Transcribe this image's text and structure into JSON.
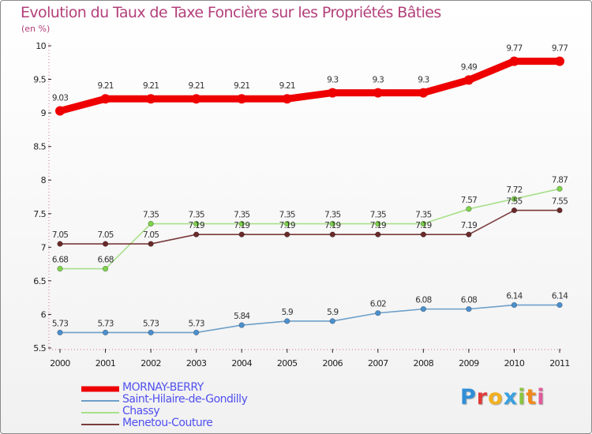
{
  "chart_data": {
    "type": "line",
    "title": "Evolution du Taux de Taxe Foncière sur les Propriétés Bâties",
    "ylabel": "(en %)",
    "xlabel": "",
    "ylim": [
      5.5,
      10
    ],
    "yticks": [
      5.5,
      6,
      6.5,
      7,
      7.5,
      8,
      8.5,
      9,
      9.5,
      10
    ],
    "yticks_labels": [
      "5.5",
      "6",
      "6.5",
      "7",
      "7.5",
      "8",
      "8.5",
      "9",
      "9.5",
      "10"
    ],
    "categories": [
      "2000",
      "2001",
      "2002",
      "2003",
      "2004",
      "2005",
      "2006",
      "2007",
      "2008",
      "2009",
      "2010",
      "2011"
    ],
    "legend_position": "bottom-left",
    "series": [
      {
        "name": "Saint-Hilaire-de-Gondilly",
        "color": "#6e9fc9",
        "marker_color": "#4a90d0",
        "values": [
          5.73,
          5.73,
          5.73,
          5.73,
          5.84,
          5.9,
          5.9,
          6.02,
          6.08,
          6.08,
          6.14,
          6.14
        ],
        "value_labels": [
          "5.73",
          "5.73",
          "5.73",
          "5.73",
          "5.84",
          "5.9",
          "5.9",
          "6.02",
          "6.08",
          "6.08",
          "6.14",
          "6.14"
        ]
      },
      {
        "name": "Chassy",
        "color": "#a8e08a",
        "marker_color": "#7ed34a",
        "values": [
          6.68,
          6.68,
          7.35,
          7.35,
          7.35,
          7.35,
          7.35,
          7.35,
          7.35,
          7.57,
          7.72,
          7.87
        ],
        "value_labels": [
          "6.68",
          "6.68",
          "7.35",
          "7.35",
          "7.35",
          "7.35",
          "7.35",
          "7.35",
          "7.35",
          "7.57",
          "7.72",
          "7.87"
        ]
      },
      {
        "name": "Menetou-Couture",
        "color": "#7a3b3b",
        "marker_color": "#6a2a2a",
        "values": [
          7.05,
          7.05,
          7.05,
          7.19,
          7.19,
          7.19,
          7.19,
          7.19,
          7.19,
          7.19,
          7.55,
          7.55
        ],
        "value_labels": [
          "7.05",
          "7.05",
          "7.05",
          "7.19",
          "7.19",
          "7.19",
          "7.19",
          "7.19",
          "7.19",
          "7.19",
          "7.55",
          "7.55"
        ]
      },
      {
        "name": "MORNAY-BERRY",
        "color": "#ee0000",
        "marker_color": "#ee0000",
        "values": [
          9.03,
          9.21,
          9.21,
          9.21,
          9.21,
          9.21,
          9.3,
          9.3,
          9.3,
          9.49,
          9.77,
          9.77
        ],
        "value_labels": [
          "9.03",
          "9.21",
          "9.21",
          "9.21",
          "9.21",
          "9.21",
          "9.3",
          "9.3",
          "9.3",
          "9.49",
          "9.77",
          "9.77"
        ]
      }
    ],
    "legend": [
      {
        "name": "MORNAY-BERRY",
        "color": "#ee0000"
      },
      {
        "name": "Saint-Hilaire-de-Gondilly",
        "color": "#6e9fc9"
      },
      {
        "name": "Chassy",
        "color": "#a8e08a"
      },
      {
        "name": "Menetou-Couture",
        "color": "#7a3b3b"
      }
    ]
  },
  "logo": {
    "letters": [
      "P",
      "r",
      "o",
      "x",
      "i",
      "t",
      "i"
    ],
    "colors": [
      "#2f8fd8",
      "#e23a3a",
      "#f2b01e",
      "#3aa0e0",
      "#8ac43f",
      "#f08a1e",
      "#e05a9a"
    ]
  }
}
